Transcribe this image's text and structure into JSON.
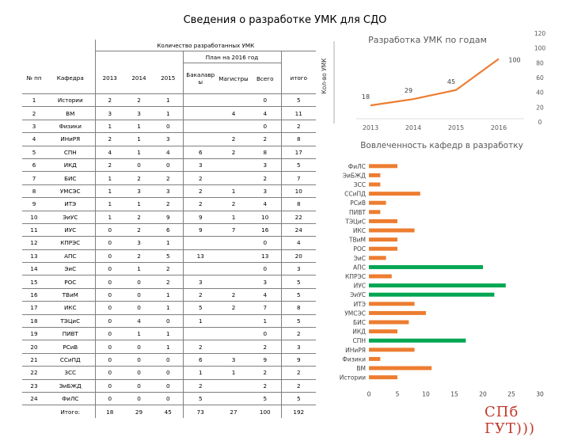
{
  "slide": {
    "title": "Сведения о разработке УМК для СДО",
    "logo_text": "СПб ГУТ)))"
  },
  "table": {
    "header_group": "Количество разработанных УМК",
    "header_plan": "План на 2016 год",
    "col_num": "№ пп",
    "col_dept": "Кафедра",
    "col_2013": "2013",
    "col_2014": "2014",
    "col_2015": "2015",
    "col_bach": "Бакалавр ы",
    "col_master": "Магистры",
    "col_total_plan": "Всего",
    "col_total": "итого",
    "rows": [
      {
        "n": "1",
        "dept": "Истории",
        "y2013": "2",
        "y2014": "2",
        "y2015": "1",
        "bach": "",
        "mag": "",
        "vsego": "0",
        "itogo": "5"
      },
      {
        "n": "2",
        "dept": "ВМ",
        "y2013": "3",
        "y2014": "3",
        "y2015": "1",
        "bach": "",
        "mag": "4",
        "vsego": "4",
        "itogo": "11"
      },
      {
        "n": "3",
        "dept": "Физики",
        "y2013": "1",
        "y2014": "1",
        "y2015": "0",
        "bach": "",
        "mag": "",
        "vsego": "0",
        "itogo": "2"
      },
      {
        "n": "4",
        "dept": "ИНиРЯ",
        "y2013": "2",
        "y2014": "1",
        "y2015": "3",
        "bach": "",
        "mag": "2",
        "vsego": "2",
        "itogo": "8"
      },
      {
        "n": "5",
        "dept": "СПН",
        "y2013": "4",
        "y2014": "1",
        "y2015": "4",
        "bach": "6",
        "mag": "2",
        "vsego": "8",
        "itogo": "17"
      },
      {
        "n": "6",
        "dept": "ИКД",
        "y2013": "2",
        "y2014": "0",
        "y2015": "0",
        "bach": "3",
        "mag": "",
        "vsego": "3",
        "itogo": "5"
      },
      {
        "n": "7",
        "dept": "БИС",
        "y2013": "1",
        "y2014": "2",
        "y2015": "2",
        "bach": "2",
        "mag": "",
        "vsego": "2",
        "itogo": "7"
      },
      {
        "n": "8",
        "dept": "УМСЭС",
        "y2013": "1",
        "y2014": "3",
        "y2015": "3",
        "bach": "2",
        "mag": "1",
        "vsego": "3",
        "itogo": "10"
      },
      {
        "n": "9",
        "dept": "ИТЭ",
        "y2013": "1",
        "y2014": "1",
        "y2015": "2",
        "bach": "2",
        "mag": "2",
        "vsego": "4",
        "itogo": "8"
      },
      {
        "n": "10",
        "dept": "ЭиУС",
        "y2013": "1",
        "y2014": "2",
        "y2015": "9",
        "bach": "9",
        "mag": "1",
        "vsego": "10",
        "itogo": "22"
      },
      {
        "n": "11",
        "dept": "ИУС",
        "y2013": "0",
        "y2014": "2",
        "y2015": "6",
        "bach": "9",
        "mag": "7",
        "vsego": "16",
        "itogo": "24"
      },
      {
        "n": "12",
        "dept": "КПРЭС",
        "y2013": "0",
        "y2014": "3",
        "y2015": "1",
        "bach": "",
        "mag": "",
        "vsego": "0",
        "itogo": "4"
      },
      {
        "n": "13",
        "dept": "АПС",
        "y2013": "0",
        "y2014": "2",
        "y2015": "5",
        "bach": "13",
        "mag": "",
        "vsego": "13",
        "itogo": "20"
      },
      {
        "n": "14",
        "dept": "ЭиС",
        "y2013": "0",
        "y2014": "1",
        "y2015": "2",
        "bach": "",
        "mag": "",
        "vsego": "0",
        "itogo": "3"
      },
      {
        "n": "15",
        "dept": "РОС",
        "y2013": "0",
        "y2014": "0",
        "y2015": "2",
        "bach": "3",
        "mag": "",
        "vsego": "3",
        "itogo": "5"
      },
      {
        "n": "16",
        "dept": "ТВиМ",
        "y2013": "0",
        "y2014": "0",
        "y2015": "1",
        "bach": "2",
        "mag": "2",
        "vsego": "4",
        "itogo": "5"
      },
      {
        "n": "17",
        "dept": "ИКС",
        "y2013": "0",
        "y2014": "0",
        "y2015": "1",
        "bach": "5",
        "mag": "2",
        "vsego": "7",
        "itogo": "8"
      },
      {
        "n": "18",
        "dept": "ТЭЦиС",
        "y2013": "0",
        "y2014": "4",
        "y2015": "0",
        "bach": "1",
        "mag": "",
        "vsego": "1",
        "itogo": "5"
      },
      {
        "n": "19",
        "dept": "ПИВТ",
        "y2013": "0",
        "y2014": "1",
        "y2015": "1",
        "bach": "",
        "mag": "",
        "vsego": "0",
        "itogo": "2"
      },
      {
        "n": "20",
        "dept": "РСиВ",
        "y2013": "0",
        "y2014": "0",
        "y2015": "1",
        "bach": "2",
        "mag": "",
        "vsego": "2",
        "itogo": "3"
      },
      {
        "n": "21",
        "dept": "ССиПД",
        "y2013": "0",
        "y2014": "0",
        "y2015": "0",
        "bach": "6",
        "mag": "3",
        "vsego": "9",
        "itogo": "9"
      },
      {
        "n": "22",
        "dept": "ЗСС",
        "y2013": "0",
        "y2014": "0",
        "y2015": "0",
        "bach": "1",
        "mag": "1",
        "vsego": "2",
        "itogo": "2"
      },
      {
        "n": "23",
        "dept": "ЭиБЖД",
        "y2013": "0",
        "y2014": "0",
        "y2015": "0",
        "bach": "2",
        "mag": "",
        "vsego": "2",
        "itogo": "2"
      },
      {
        "n": "24",
        "dept": "ФиЛС",
        "y2013": "0",
        "y2014": "0",
        "y2015": "0",
        "bach": "5",
        "mag": "",
        "vsego": "5",
        "itogo": "5"
      }
    ],
    "totals": {
      "label": "Итого:",
      "y2013": "18",
      "y2014": "29",
      "y2015": "45",
      "bach": "73",
      "mag": "27",
      "vsego": "100",
      "itogo": "192"
    }
  },
  "chart_data": [
    {
      "type": "line",
      "title": "Разработка УМК по годам",
      "ylabel": "Кол-во УМК",
      "xlabel": "",
      "x": [
        "2013",
        "2014",
        "2015",
        "2016"
      ],
      "values": [
        18,
        29,
        45,
        100
      ],
      "data_labels": [
        "18",
        "29",
        "45",
        "100"
      ],
      "yticks": [
        "0",
        "20",
        "40",
        "60",
        "80",
        "100",
        "120"
      ],
      "ylim": [
        0,
        120
      ],
      "grid": false,
      "color": "#ed7d31"
    },
    {
      "type": "bar",
      "orientation": "horizontal",
      "title": "Вовлеченность кафедр в разработку",
      "categories": [
        "ФиЛС",
        "ЭиБЖД",
        "ЗСС",
        "ССиПД",
        "РСиВ",
        "ПИВТ",
        "ТЭЦиС",
        "ИКС",
        "ТВиМ",
        "РОС",
        "ЭиС",
        "АПС",
        "КПРЭС",
        "ИУС",
        "ЭиУС",
        "ИТЭ",
        "УМСЭС",
        "БИС",
        "ИКД",
        "СПН",
        "ИНиРЯ",
        "Физики",
        "ВМ",
        "Истории"
      ],
      "values": [
        5,
        2,
        2,
        9,
        3,
        2,
        5,
        8,
        5,
        5,
        3,
        20,
        4,
        24,
        22,
        8,
        10,
        7,
        5,
        17,
        8,
        2,
        11,
        5
      ],
      "highlight": [
        false,
        false,
        false,
        false,
        false,
        false,
        false,
        false,
        false,
        false,
        false,
        true,
        false,
        true,
        true,
        false,
        false,
        false,
        false,
        true,
        false,
        false,
        false,
        false
      ],
      "xticks": [
        "0",
        "5",
        "10",
        "15",
        "20",
        "25",
        "30"
      ],
      "xlim": [
        0,
        30
      ],
      "grid": false,
      "colors": {
        "normal": "#ed7d31",
        "highlight": "#00a651"
      }
    }
  ]
}
